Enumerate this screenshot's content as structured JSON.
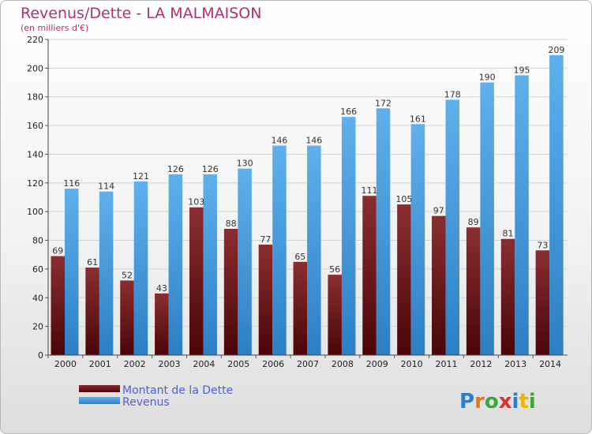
{
  "chart_data": {
    "type": "bar",
    "title": "Revenus/Dette - LA MALMAISON",
    "subtitle": "(en milliers d'€)",
    "categories": [
      "2000",
      "2001",
      "2002",
      "2003",
      "2004",
      "2005",
      "2006",
      "2007",
      "2008",
      "2009",
      "2010",
      "2011",
      "2012",
      "2013",
      "2014"
    ],
    "series": [
      {
        "name": "Montant de la Dette",
        "values": [
          69,
          61,
          52,
          43,
          103,
          88,
          77,
          65,
          56,
          111,
          105,
          97,
          89,
          81,
          73
        ],
        "color": "#7a1a1c"
      },
      {
        "name": "Revenus",
        "values": [
          116,
          114,
          121,
          126,
          126,
          130,
          146,
          146,
          166,
          172,
          161,
          178,
          190,
          195,
          209
        ],
        "color": "#4aa3e6"
      }
    ],
    "ylim": [
      0,
      220
    ],
    "yticks": [
      0,
      20,
      40,
      60,
      80,
      100,
      120,
      140,
      160,
      180,
      200,
      220
    ],
    "grid": true,
    "legend_position": "bottom-left"
  },
  "logo": {
    "text": "Proxiti",
    "letter_colors": [
      "#2c7fc9",
      "#e07a18",
      "#3aa83a",
      "#d6322e",
      "#2c7fc9",
      "#e8b50c",
      "#3aa83a"
    ]
  }
}
